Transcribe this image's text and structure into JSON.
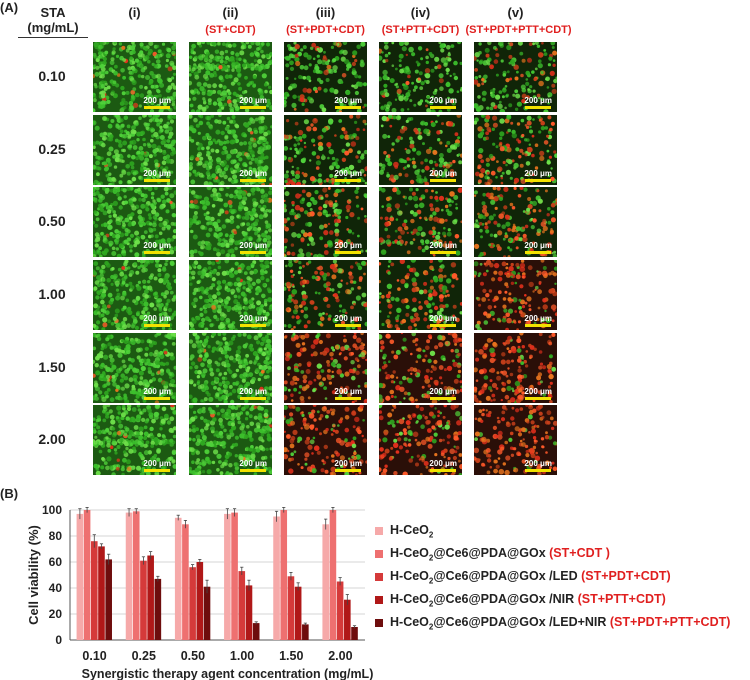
{
  "panel_a_letter": "(A)",
  "panel_b_letter": "(B)",
  "sta_header": "STA",
  "sta_unit": "(mg/mL)",
  "columns": [
    {
      "label": "(i)",
      "sub": ""
    },
    {
      "label": "(ii)",
      "sub": "(ST+CDT)"
    },
    {
      "label": "(iii)",
      "sub": "(ST+PDT+CDT)"
    },
    {
      "label": "(iv)",
      "sub": "(ST+PTT+CDT)"
    },
    {
      "label": "(v)",
      "sub": "(ST+PDT+PTT+CDT)"
    }
  ],
  "rows": [
    "0.10",
    "0.25",
    "0.50",
    "1.00",
    "1.50",
    "2.00"
  ],
  "scale_bar_label": "200 μm",
  "red_fraction": [
    [
      0.02,
      0.02,
      0.2,
      0.15,
      0.25
    ],
    [
      0.02,
      0.02,
      0.4,
      0.35,
      0.55
    ],
    [
      0.02,
      0.02,
      0.45,
      0.45,
      0.6
    ],
    [
      0.02,
      0.02,
      0.55,
      0.6,
      0.8
    ],
    [
      0.02,
      0.02,
      0.7,
      0.65,
      0.9
    ],
    [
      0.02,
      0.02,
      0.8,
      0.75,
      0.95
    ]
  ],
  "chart_data": {
    "type": "bar",
    "categories": [
      "0.10",
      "0.25",
      "0.50",
      "1.00",
      "1.50",
      "2.00"
    ],
    "ylabel": "Cell viability (%)",
    "xlabel": "Synergistic therapy agent concentration (mg/mL)",
    "ylim": [
      0,
      100
    ],
    "yticks": [
      0,
      20,
      40,
      60,
      80,
      100
    ],
    "grid": true,
    "legend_position": "right",
    "series": [
      {
        "name": "H-CeO2",
        "therapy": "",
        "color": "#f6a9a9",
        "values": [
          97,
          98,
          94,
          97,
          95,
          89
        ],
        "errors": [
          4,
          3,
          2,
          4,
          4,
          4
        ]
      },
      {
        "name": "H-CeO2@Ce6@PDA@GOx",
        "therapy": "(ST+CDT )",
        "color": "#ee7070",
        "values": [
          100,
          99,
          89,
          98,
          100,
          100
        ],
        "errors": [
          2,
          2,
          3,
          3,
          2,
          2
        ]
      },
      {
        "name": "H-CeO2@Ce6@PDA@GOx /LED",
        "therapy": "(ST+PDT+CDT)",
        "color": "#d53a3a",
        "values": [
          76,
          61,
          56,
          53,
          49,
          45
        ],
        "errors": [
          5,
          3,
          2,
          3,
          3,
          3
        ]
      },
      {
        "name": "H-CeO2@Ce6@PDA@GOx /NIR",
        "therapy": "(ST+PTT+CDT)",
        "color": "#b01818",
        "values": [
          72,
          65,
          60,
          42,
          41,
          31
        ],
        "errors": [
          2,
          3,
          2,
          4,
          3,
          4
        ]
      },
      {
        "name": "H-CeO2@Ce6@PDA@GOx /LED+NIR",
        "therapy": "(ST+PDT+PTT+CDT)",
        "color": "#6e0d0d",
        "values": [
          62,
          47,
          41,
          13,
          12,
          10
        ],
        "errors": [
          4,
          2,
          5,
          1,
          1,
          1
        ]
      }
    ]
  }
}
